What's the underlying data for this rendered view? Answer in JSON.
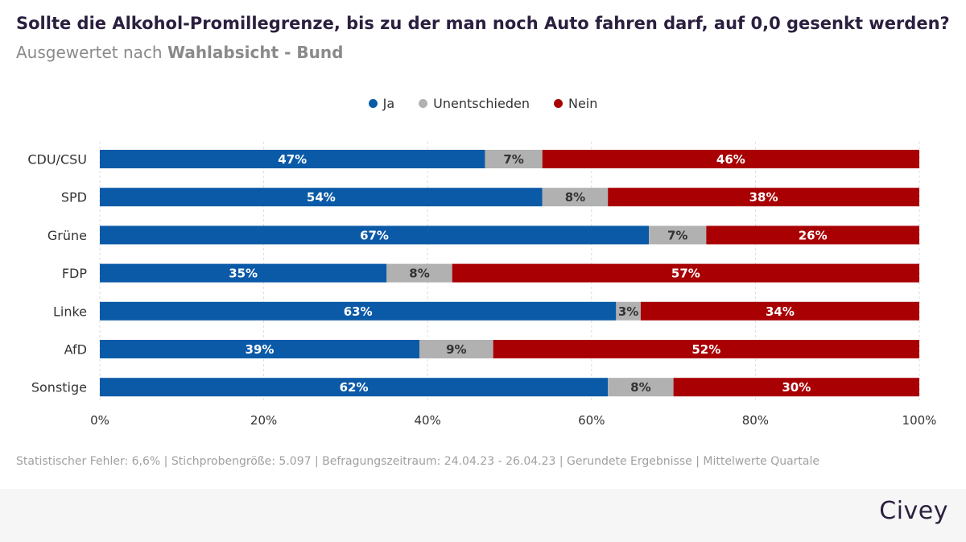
{
  "header": {
    "title": "Sollte die Alkohol-Promillegrenze, bis zu der man noch Auto fahren darf, auf 0,0 gesenkt werden?",
    "subtitle_prefix": "Ausgewertet nach ",
    "subtitle_bold": "Wahlabsicht - Bund"
  },
  "colors": {
    "ja": "#0b5aa7",
    "unentschieden": "#b1b1b1",
    "nein": "#a80003",
    "grid": "#dcdcdc"
  },
  "chart_data": {
    "type": "bar",
    "orientation": "horizontal",
    "stacked": true,
    "title": "Sollte die Alkohol-Promillegrenze, bis zu der man noch Auto fahren darf, auf 0,0 gesenkt werden?",
    "categories": [
      "CDU/CSU",
      "SPD",
      "Grüne",
      "FDP",
      "Linke",
      "AfD",
      "Sonstige"
    ],
    "series": [
      {
        "name": "Ja",
        "values": [
          47,
          54,
          67,
          35,
          63,
          39,
          62
        ]
      },
      {
        "name": "Unentschieden",
        "values": [
          7,
          8,
          7,
          8,
          3,
          9,
          8
        ]
      },
      {
        "name": "Nein",
        "values": [
          46,
          38,
          26,
          57,
          34,
          52,
          30
        ]
      }
    ],
    "xlim": [
      0,
      100
    ],
    "xticks": [
      0,
      20,
      40,
      60,
      80,
      100
    ],
    "xtick_labels": [
      "0%",
      "20%",
      "40%",
      "60%",
      "80%",
      "100%"
    ],
    "value_suffix": "%",
    "legend_position": "top-center",
    "grid": true
  },
  "footer": {
    "note": "Statistischer Fehler: 6,6% | Stichprobengröße: 5.097 | Befragungszeitraum: 24.04.23 - 26.04.23 | Gerundete Ergebnisse | Mittelwerte Quartale",
    "brand": "Civey"
  }
}
